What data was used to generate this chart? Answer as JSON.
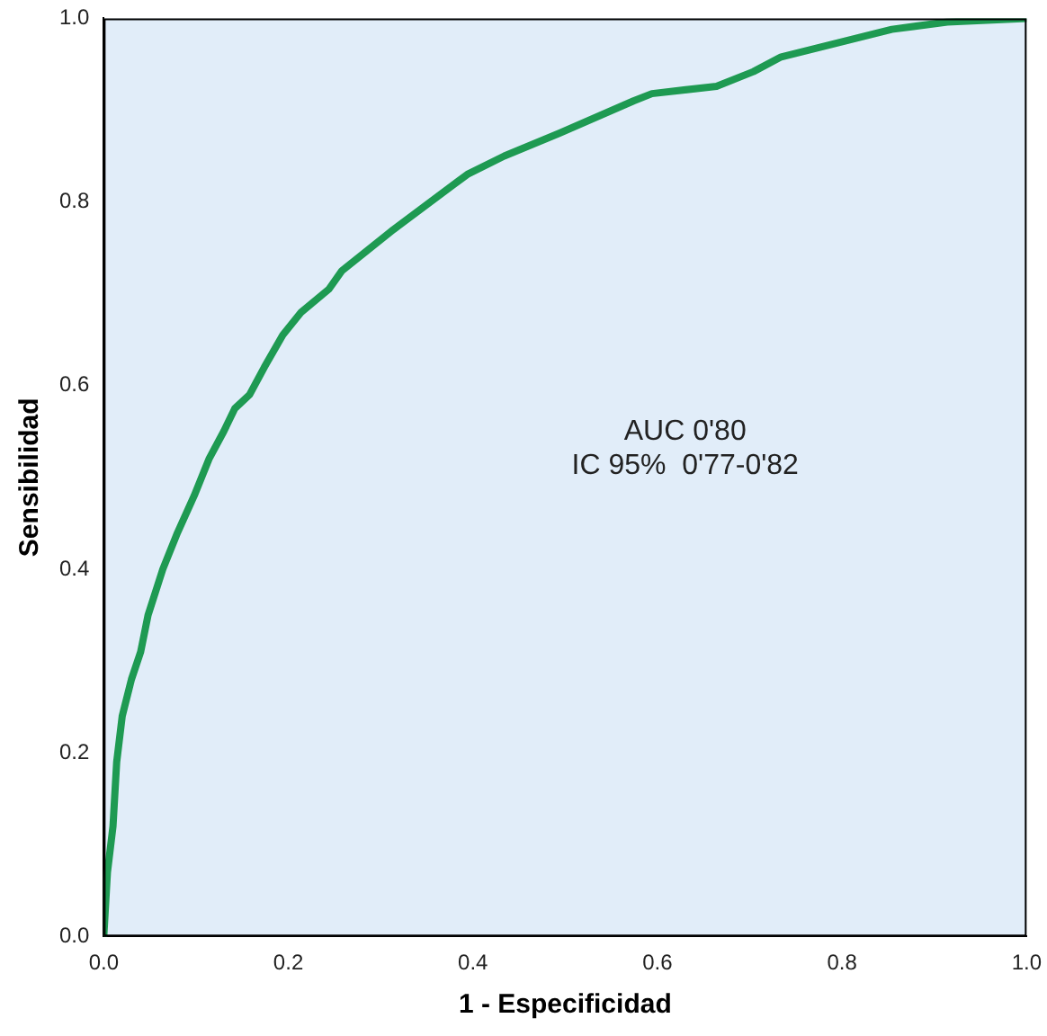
{
  "chart_data": {
    "type": "line",
    "xlabel": "1 - Especificidad",
    "ylabel": "Sensibilidad",
    "x": [
      0,
      0.004,
      0.01,
      0.014,
      0.02,
      0.03,
      0.04,
      0.048,
      0.064,
      0.08,
      0.098,
      0.114,
      0.13,
      0.142,
      0.158,
      0.174,
      0.194,
      0.214,
      0.244,
      0.258,
      0.314,
      0.394,
      0.434,
      0.494,
      0.574,
      0.594,
      0.664,
      0.704,
      0.734,
      0.854,
      0.914,
      1
    ],
    "series": [
      {
        "color": "#1e9a52",
        "values": [
          0,
          0.07,
          0.12,
          0.19,
          0.24,
          0.28,
          0.31,
          0.35,
          0.4,
          0.44,
          0.48,
          0.52,
          0.55,
          0.575,
          0.59,
          0.62,
          0.655,
          0.68,
          0.705,
          0.725,
          0.77,
          0.83,
          0.85,
          0.875,
          0.91,
          0.918,
          0.926,
          0.942,
          0.958,
          0.988,
          0.996,
          1
        ]
      }
    ],
    "xlim": [
      0,
      1
    ],
    "ylim": [
      0,
      1
    ],
    "xticks": [
      {
        "value": 0,
        "label": "0.0"
      },
      {
        "value": 0.2,
        "label": "0.2"
      },
      {
        "value": 0.4,
        "label": "0.4"
      },
      {
        "value": 0.6,
        "label": "0.6"
      },
      {
        "value": 0.8,
        "label": "0.8"
      },
      {
        "value": 1,
        "label": "1.0"
      }
    ],
    "yticks": [
      {
        "value": 0,
        "label": "0.0"
      },
      {
        "value": 0.2,
        "label": "0.2"
      },
      {
        "value": 0.4,
        "label": "0.4"
      },
      {
        "value": 0.6,
        "label": "0.6"
      },
      {
        "value": 0.8,
        "label": "0.8"
      },
      {
        "value": 1,
        "label": "1.0"
      }
    ],
    "annotations": [
      "AUC 0'80",
      "IC 95%  0'77-0'82"
    ],
    "grid": false,
    "legend": false,
    "marker": "none",
    "line_style": "solid"
  }
}
